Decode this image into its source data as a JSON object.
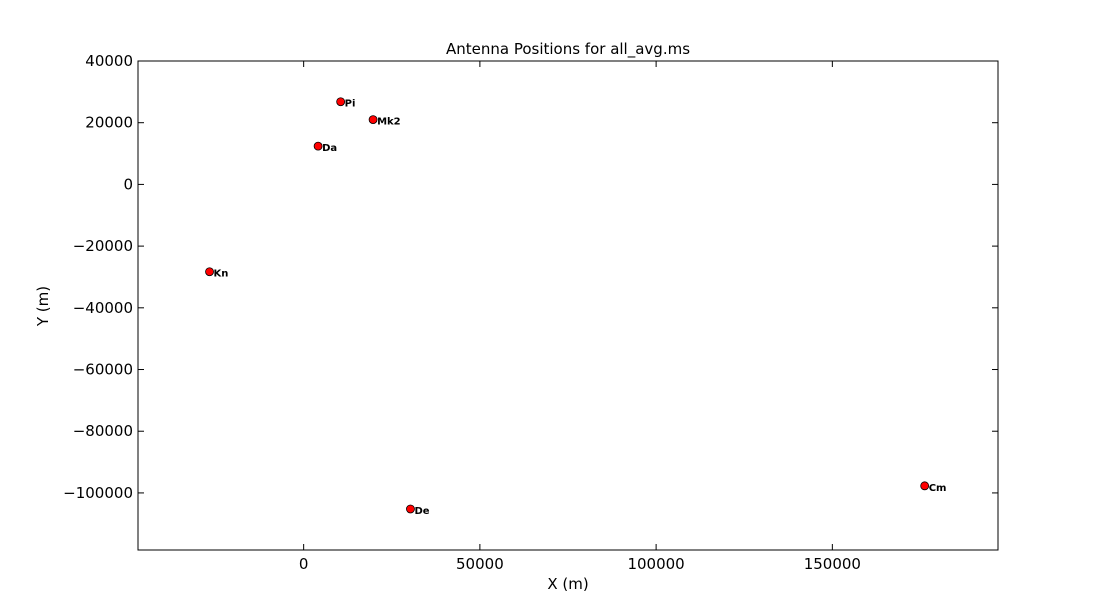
{
  "chart_data": {
    "type": "scatter",
    "title": "Antenna Positions for all_avg.ms",
    "xlabel": "X (m)",
    "ylabel": "Y (m)",
    "xlim": [
      -47000,
      197000
    ],
    "ylim": [
      -118500,
      40000
    ],
    "xticks": [
      0,
      50000,
      100000,
      150000
    ],
    "yticks": [
      40000,
      20000,
      0,
      -20000,
      -40000,
      -60000,
      -80000,
      -100000
    ],
    "xtick_labels": [
      "0",
      "50000",
      "100000",
      "150000"
    ],
    "ytick_labels": [
      "40000",
      "20000",
      "0",
      "−20000",
      "−40000",
      "−60000",
      "−80000",
      "−100000"
    ],
    "grid": false,
    "marker_color": "#ff0000",
    "series": [
      {
        "points": [
          {
            "label": "Pi",
            "x": 10500,
            "y": 26800
          },
          {
            "label": "Mk2",
            "x": 19700,
            "y": 21000
          },
          {
            "label": "Da",
            "x": 4100,
            "y": 12400
          },
          {
            "label": "Kn",
            "x": -26700,
            "y": -28300
          },
          {
            "label": "De",
            "x": 30300,
            "y": -105200
          },
          {
            "label": "Cm",
            "x": 176200,
            "y": -97700
          }
        ]
      }
    ]
  }
}
